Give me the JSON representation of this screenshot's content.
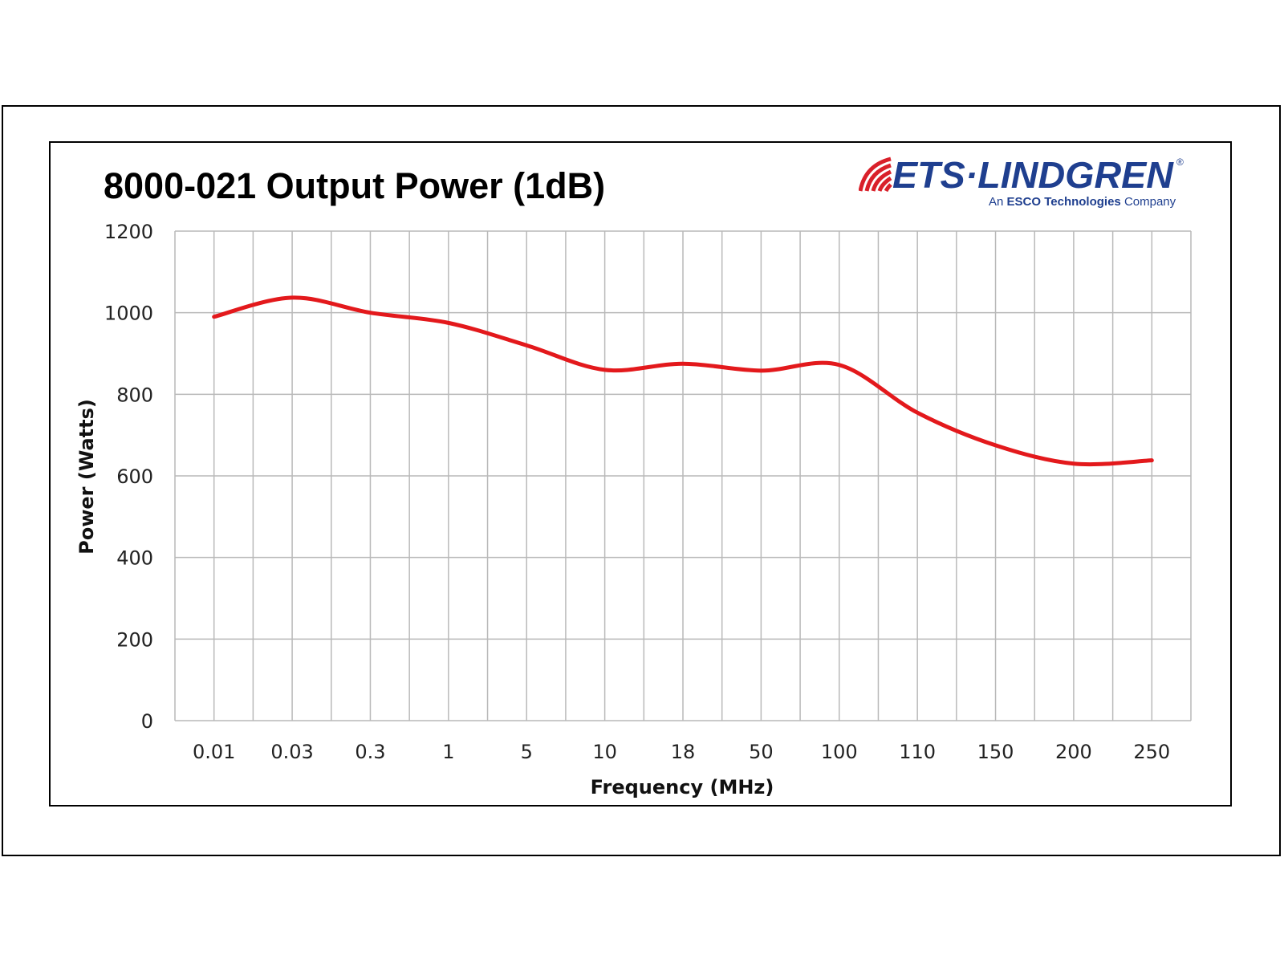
{
  "logo": {
    "brand_text": "ETS·LINDGREN",
    "registered_mark": "®",
    "tagline_prefix": "An",
    "tagline_company": "ESCO Technologies",
    "tagline_suffix": "Company",
    "brand_color": "#1f3f8f",
    "accent_color": "#d9202a"
  },
  "chart_data": {
    "type": "line",
    "title": "8000-021 Output Power (1dB)",
    "xlabel": "Frequency (MHz)",
    "ylabel": "Power (Watts)",
    "categories": [
      "0.01",
      "0.03",
      "0.3",
      "1",
      "5",
      "10",
      "18",
      "50",
      "100",
      "110",
      "150",
      "200",
      "250"
    ],
    "series": [
      {
        "color": "#e3191c",
        "values": [
          990,
          1037,
          1000,
          975,
          920,
          860,
          875,
          858,
          872,
          755,
          675,
          630,
          638
        ]
      }
    ],
    "ylim": [
      0,
      1200
    ],
    "yticks": [
      0,
      200,
      400,
      600,
      800,
      1000,
      1200
    ],
    "grid": true,
    "legend": "none"
  }
}
